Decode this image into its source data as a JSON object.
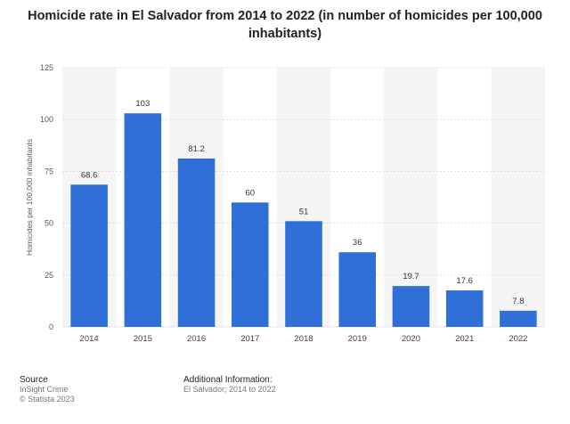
{
  "chart_data": {
    "type": "bar",
    "title": "Homicide rate in El Salvador from 2014 to 2022 (in number of homicides per 100,000 inhabitants)",
    "title_lines": [
      "Homicide rate in El Salvador from 2014 to 2022 (in number of homicides per 100,000",
      "inhabitants)"
    ],
    "categories": [
      "2014",
      "2015",
      "2016",
      "2017",
      "2018",
      "2019",
      "2020",
      "2021",
      "2022"
    ],
    "values": [
      68.6,
      103,
      81.2,
      60,
      51,
      36,
      19.7,
      17.6,
      7.8
    ],
    "value_labels": [
      "68.6",
      "103",
      "81.2",
      "60",
      "51",
      "36",
      "19.7",
      "17.6",
      "7.8"
    ],
    "xlabel": "",
    "ylabel": "Homicides per 100,000 inhabitants",
    "ylim": [
      0,
      125
    ],
    "yticks": [
      0,
      25,
      50,
      75,
      100,
      125
    ],
    "bar_color": "#2e6fd8",
    "grid": true
  },
  "footer": {
    "source_heading": "Source",
    "source_name": "InSight Crime",
    "copyright": "© Statista 2023",
    "additional_heading": "Additional Information:",
    "additional_text": "El Salvador; 2014 to 2022"
  }
}
